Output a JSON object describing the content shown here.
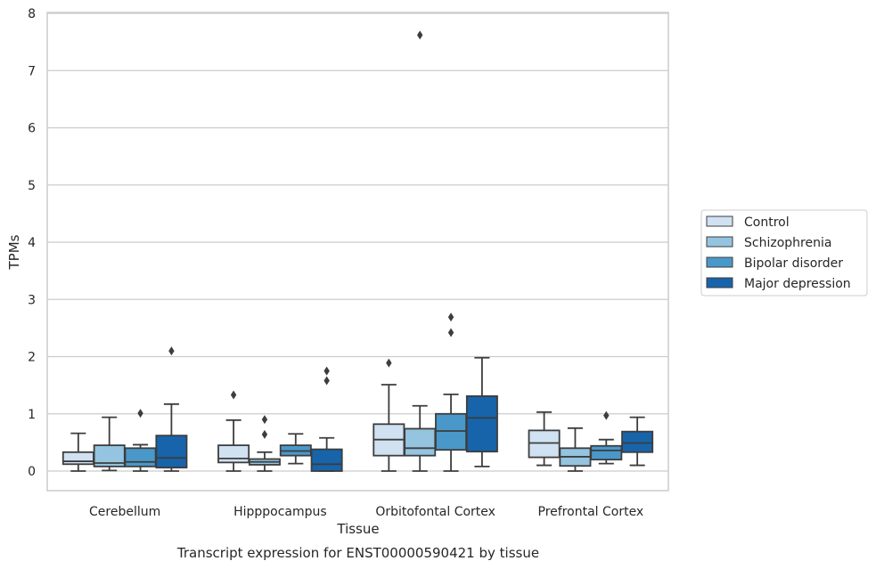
{
  "chart_data": {
    "type": "box",
    "title": "",
    "caption": "Transcript expression for ENST00000590421 by tissue",
    "xlabel": "Tissue",
    "ylabel": "TPMs",
    "ylim": [
      -0.35,
      8.0
    ],
    "yticks": [
      0,
      1,
      2,
      3,
      4,
      5,
      6,
      7,
      8
    ],
    "grid": "horizontal",
    "legend_position": "right",
    "categories": [
      "Cerebellum",
      "Hipppocampus",
      "Orbitofontal Cortex",
      "Prefrontal Cortex"
    ],
    "series": [
      {
        "name": "Control",
        "color": "#d0e1f2",
        "boxes": [
          {
            "whislo": 0.0,
            "q1": 0.12,
            "median": 0.17,
            "q3": 0.33,
            "whishi": 0.66,
            "fliers": []
          },
          {
            "whislo": 0.0,
            "q1": 0.15,
            "median": 0.22,
            "q3": 0.45,
            "whishi": 0.89,
            "fliers": [
              1.33
            ]
          },
          {
            "whislo": 0.0,
            "q1": 0.27,
            "median": 0.55,
            "q3": 0.82,
            "whishi": 1.51,
            "fliers": [
              1.89
            ]
          },
          {
            "whislo": 0.1,
            "q1": 0.24,
            "median": 0.49,
            "q3": 0.71,
            "whishi": 1.03,
            "fliers": []
          }
        ]
      },
      {
        "name": "Schizophrenia",
        "color": "#94c4df",
        "boxes": [
          {
            "whislo": 0.01,
            "q1": 0.08,
            "median": 0.14,
            "q3": 0.45,
            "whishi": 0.94,
            "fliers": []
          },
          {
            "whislo": 0.0,
            "q1": 0.11,
            "median": 0.16,
            "q3": 0.21,
            "whishi": 0.33,
            "fliers": [
              0.64,
              0.9
            ]
          },
          {
            "whislo": 0.0,
            "q1": 0.27,
            "median": 0.4,
            "q3": 0.74,
            "whishi": 1.14,
            "fliers": [
              7.62
            ]
          },
          {
            "whislo": 0.0,
            "q1": 0.09,
            "median": 0.25,
            "q3": 0.4,
            "whishi": 0.75,
            "fliers": []
          }
        ]
      },
      {
        "name": "Bipolar disorder",
        "color": "#4a98c9",
        "boxes": [
          {
            "whislo": 0.0,
            "q1": 0.08,
            "median": 0.16,
            "q3": 0.4,
            "whishi": 0.46,
            "fliers": [
              1.01
            ]
          },
          {
            "whislo": 0.13,
            "q1": 0.27,
            "median": 0.35,
            "q3": 0.45,
            "whishi": 0.65,
            "fliers": []
          },
          {
            "whislo": 0.0,
            "q1": 0.37,
            "median": 0.7,
            "q3": 1.0,
            "whishi": 1.34,
            "fliers": [
              2.42,
              2.69
            ]
          },
          {
            "whislo": 0.13,
            "q1": 0.2,
            "median": 0.36,
            "q3": 0.44,
            "whishi": 0.55,
            "fliers": [
              0.97
            ]
          }
        ]
      },
      {
        "name": "Major depression",
        "color": "#1764ab",
        "boxes": [
          {
            "whislo": 0.0,
            "q1": 0.06,
            "median": 0.23,
            "q3": 0.62,
            "whishi": 1.17,
            "fliers": [
              2.1
            ]
          },
          {
            "whislo": 0.0,
            "q1": 0.0,
            "median": 0.12,
            "q3": 0.38,
            "whishi": 0.58,
            "fliers": [
              1.58,
              1.75
            ]
          },
          {
            "whislo": 0.08,
            "q1": 0.34,
            "median": 0.93,
            "q3": 1.31,
            "whishi": 1.98,
            "fliers": []
          },
          {
            "whislo": 0.1,
            "q1": 0.33,
            "median": 0.49,
            "q3": 0.69,
            "whishi": 0.94,
            "fliers": []
          }
        ]
      }
    ]
  }
}
